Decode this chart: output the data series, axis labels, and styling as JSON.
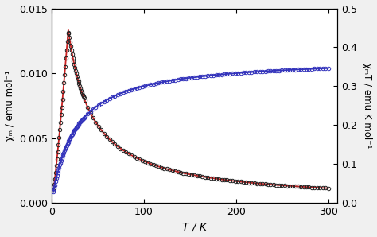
{
  "title": "",
  "xlabel": "T / K",
  "ylabel_left": "χₘ / emu mol⁻¹",
  "ylabel_right": "χₘT / emu K mol⁻¹",
  "xlim": [
    0,
    310
  ],
  "ylim_left": [
    0.0,
    0.015
  ],
  "ylim_right": [
    0.0,
    0.5
  ],
  "yticks_left": [
    0.0,
    0.005,
    0.01,
    0.015
  ],
  "yticks_right": [
    0.0,
    0.1,
    0.2,
    0.3,
    0.4,
    0.5
  ],
  "xticks": [
    0,
    100,
    200,
    300
  ],
  "background_color": "#f0f0f0",
  "plot_bg_color": "#ffffff",
  "circle_color_black": "#222222",
  "circle_color_blue": "#3333bb",
  "line_color_red": "#cc2222",
  "line_color_blue": "#3333bb",
  "chi_peak_T": 18.0,
  "chi_peak_val": 0.01335,
  "chiT_plateau": 0.375,
  "chiT_rise_rate": 25.0
}
